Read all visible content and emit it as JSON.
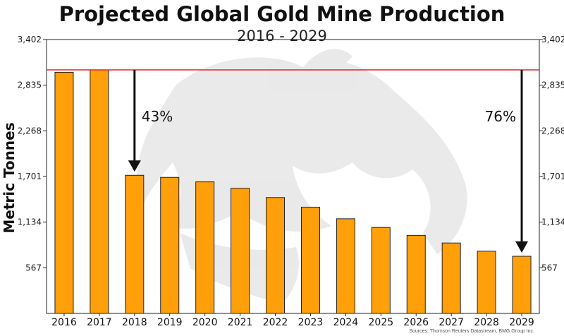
{
  "chart_data": {
    "type": "bar",
    "title": "Projected Global Gold Mine Production",
    "subtitle": "2016 - 2029",
    "xlabel": "",
    "ylabel": "Metric Tonnes",
    "categories": [
      "2016",
      "2017",
      "2018",
      "2019",
      "2020",
      "2021",
      "2022",
      "2023",
      "2024",
      "2025",
      "2026",
      "2027",
      "2028",
      "2029"
    ],
    "values": [
      2995,
      3025,
      1716,
      1690,
      1634,
      1555,
      1440,
      1320,
      1176,
      1068,
      970,
      875,
      773,
      710
    ],
    "ylim": [
      0,
      3402
    ],
    "yticks": [
      567,
      1134,
      1701,
      2268,
      2835,
      3402
    ],
    "ytick_labels": [
      "567",
      "1,134",
      "1,701",
      "2,268",
      "2,835",
      "3,402"
    ],
    "reference_line": {
      "value": 3025,
      "color": "#e0262b"
    },
    "annotations": [
      {
        "label": "43%",
        "category": "2018"
      },
      {
        "label": "76%",
        "category": "2029"
      }
    ],
    "bar_color": "#ff9f0a",
    "source": "Sources: Thomson Reuters Datastream, BMG Group Inc."
  }
}
